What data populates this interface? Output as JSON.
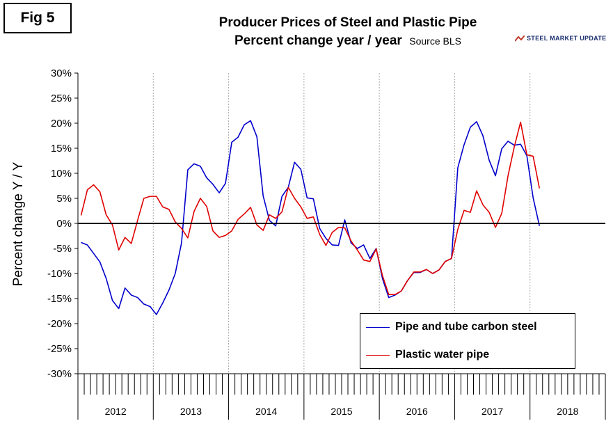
{
  "fig_label": "Fig 5",
  "title_line1": "Producer Prices of Steel and Plastic Pipe",
  "title_line2": "Percent change year / year",
  "source_note": "Source BLS",
  "logo_text": "STEEL MARKET UPDATE",
  "colors": {
    "steel": "#0000cc",
    "plastic": "#e00000",
    "grid": "#000000",
    "logo": "#1a2f6e"
  },
  "chart_data": {
    "type": "line",
    "title": "Producer Prices of Steel and Plastic Pipe",
    "subtitle": "Percent change year / year",
    "xlabel": "",
    "ylabel": "Percent change Y / Y",
    "ylim": [
      -30,
      30
    ],
    "yticks": [
      30,
      25,
      20,
      15,
      10,
      5,
      0,
      -5,
      -10,
      -15,
      -20,
      -25,
      -30
    ],
    "ytick_labels": [
      "30%",
      "25%",
      "20%",
      "15%",
      "10%",
      "5%",
      "0%",
      "-5%",
      "-10%",
      "-15%",
      "-20%",
      "-25%",
      "-30%"
    ],
    "x_start": "2012-01",
    "months_per_year": 12,
    "years": [
      "2012",
      "2013",
      "2014",
      "2015",
      "2016",
      "2017",
      "2018"
    ],
    "grid": false,
    "legend_position": "bottom-right",
    "series": [
      {
        "name": "Pipe and tube carbon steel",
        "color": "#0000cc",
        "values": [
          -3.8,
          -4.3,
          -6.0,
          -7.7,
          -11.0,
          -15.4,
          -17.0,
          -12.9,
          -14.3,
          -14.8,
          -16.1,
          -16.6,
          -18.2,
          -15.9,
          -13.3,
          -10.0,
          -3.9,
          10.7,
          11.9,
          11.4,
          9.1,
          7.8,
          6.1,
          8.0,
          16.2,
          17.2,
          19.7,
          20.5,
          17.3,
          5.5,
          0.6,
          -0.5,
          5.4,
          7.2,
          12.2,
          10.8,
          5.1,
          4.9,
          -1.0,
          -3.0,
          -4.3,
          -4.4,
          0.7,
          -3.9,
          -5.0,
          -4.3,
          -7.0,
          -5.0,
          -11.0,
          -14.8,
          -14.3,
          -13.5,
          -11.4,
          -9.8,
          -9.8,
          -9.2,
          -10.0,
          -9.3,
          -7.6,
          -7.0,
          11.1,
          15.7,
          19.2,
          20.3,
          17.5,
          12.6,
          9.5,
          14.9,
          16.4,
          15.6,
          15.8,
          13.5,
          5.1,
          -0.5
        ]
      },
      {
        "name": "Plastic water pipe",
        "color": "#e00000",
        "values": [
          1.6,
          6.7,
          7.7,
          6.3,
          1.7,
          -0.3,
          -5.3,
          -2.8,
          -4.0,
          0.6,
          5.0,
          5.4,
          5.4,
          3.3,
          2.8,
          0.3,
          -1.0,
          -2.9,
          2.4,
          5.0,
          3.4,
          -1.5,
          -2.8,
          -2.4,
          -1.5,
          0.8,
          1.9,
          3.2,
          -0.3,
          -1.4,
          1.7,
          1.0,
          2.3,
          7.2,
          5.0,
          3.3,
          1.0,
          1.3,
          -2.2,
          -4.4,
          -1.8,
          -0.8,
          -0.9,
          -3.5,
          -5.3,
          -7.3,
          -7.6,
          -5.1,
          -10.4,
          -14.2,
          -14.2,
          -13.5,
          -11.4,
          -9.7,
          -9.7,
          -9.2,
          -10.0,
          -9.3,
          -7.6,
          -7.0,
          -1.2,
          2.6,
          2.2,
          6.5,
          3.7,
          2.2,
          -0.8,
          2.0,
          9.5,
          15.3,
          20.2,
          13.7,
          13.4,
          7.0
        ]
      }
    ]
  }
}
